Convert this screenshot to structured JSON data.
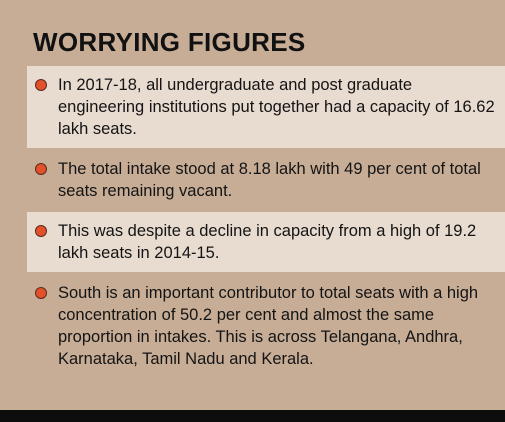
{
  "title": "WORRYING FIGURES",
  "items": [
    {
      "text": "In 2017-18, all undergraduate and post graduate engineering institutions put together had a capacity of 16.62 lakh seats."
    },
    {
      "text": "The total intake stood at 8.18 lakh with 49 per cent of total seats remaining vacant."
    },
    {
      "text": "This was despite a decline in capacity from a high of 19.2 lakh seats in 2014-15."
    },
    {
      "text": "South is an important contributor to total seats with a high concentration of 50.2 per cent and almost the same proportion in intakes. This is across Telangana, Andhra, Karnataka, Tamil Nadu and Kerala."
    }
  ],
  "colors": {
    "background": "#c7ad96",
    "panel_light": "#e8dbd0",
    "bullet": "#e2512b",
    "bottom_bar": "#0d0d0d"
  }
}
